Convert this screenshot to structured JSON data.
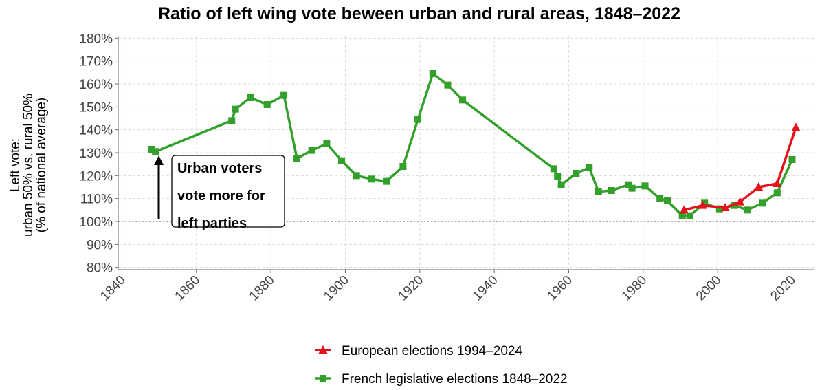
{
  "chart_data": {
    "type": "line",
    "title": "Ratio of left wing vote beween urban and rural areas, 1848–2022",
    "ylabel": [
      "Left vote:",
      "urban 50% vs. rural 50%",
      "(% of national average)"
    ],
    "annotation": [
      "Urban voters",
      "vote more for",
      "left parties"
    ],
    "hline": 100,
    "xlim": [
      1839,
      2026
    ],
    "xticks": [
      1840,
      1860,
      1880,
      1900,
      1920,
      1940,
      1960,
      1980,
      2000,
      2020
    ],
    "ylim": [
      79,
      181
    ],
    "yticks": [
      {
        "value": 80,
        "label": "80%"
      },
      {
        "value": 90,
        "label": "90%"
      },
      {
        "value": 100,
        "label": "100%"
      },
      {
        "value": 110,
        "label": "110%"
      },
      {
        "value": 120,
        "label": "120%"
      },
      {
        "value": 130,
        "label": "130%"
      },
      {
        "value": 140,
        "label": "140%"
      },
      {
        "value": 150,
        "label": "150%"
      },
      {
        "value": 160,
        "label": "160%"
      },
      {
        "value": 170,
        "label": "170%"
      },
      {
        "value": 180,
        "label": "180%"
      }
    ],
    "grid": true,
    "legend": "bottom",
    "series": [
      {
        "name": "European elections 1994–2024",
        "color": "#e3121b",
        "marker": "triangle",
        "x": [
          1991,
          1996,
          2002,
          2006,
          2011,
          2016,
          2021
        ],
        "values": [
          105,
          107,
          106,
          108.5,
          115,
          116.5,
          141
        ]
      },
      {
        "name": "French legislative elections 1848–2022",
        "color": "#33a02c",
        "marker": "square",
        "x": [
          1848,
          1849,
          1869.5,
          1870.5,
          1874.5,
          1879,
          1883.5,
          1887,
          1891,
          1895,
          1899,
          1903,
          1907,
          1911,
          1915.5,
          1919.5,
          1923.5,
          1927.5,
          1931.5,
          1956,
          1957,
          1958,
          1962,
          1965.5,
          1968,
          1971.5,
          1976,
          1977,
          1980.5,
          1984.5,
          1986.5,
          1990.5,
          1992.5,
          1996.5,
          2000.5,
          2004.5,
          2008,
          2012,
          2016,
          2020
        ],
        "values": [
          131.5,
          130.5,
          144,
          149,
          154,
          151,
          155,
          127.5,
          131,
          134,
          126.5,
          120,
          118.5,
          117.5,
          124,
          144.5,
          164.5,
          159.5,
          153,
          123,
          119.5,
          116,
          121,
          123.5,
          113,
          113.5,
          116,
          114.5,
          115.5,
          110,
          109,
          102.5,
          102.5,
          108,
          105.5,
          107,
          105,
          108,
          112.5,
          127
        ]
      }
    ]
  }
}
